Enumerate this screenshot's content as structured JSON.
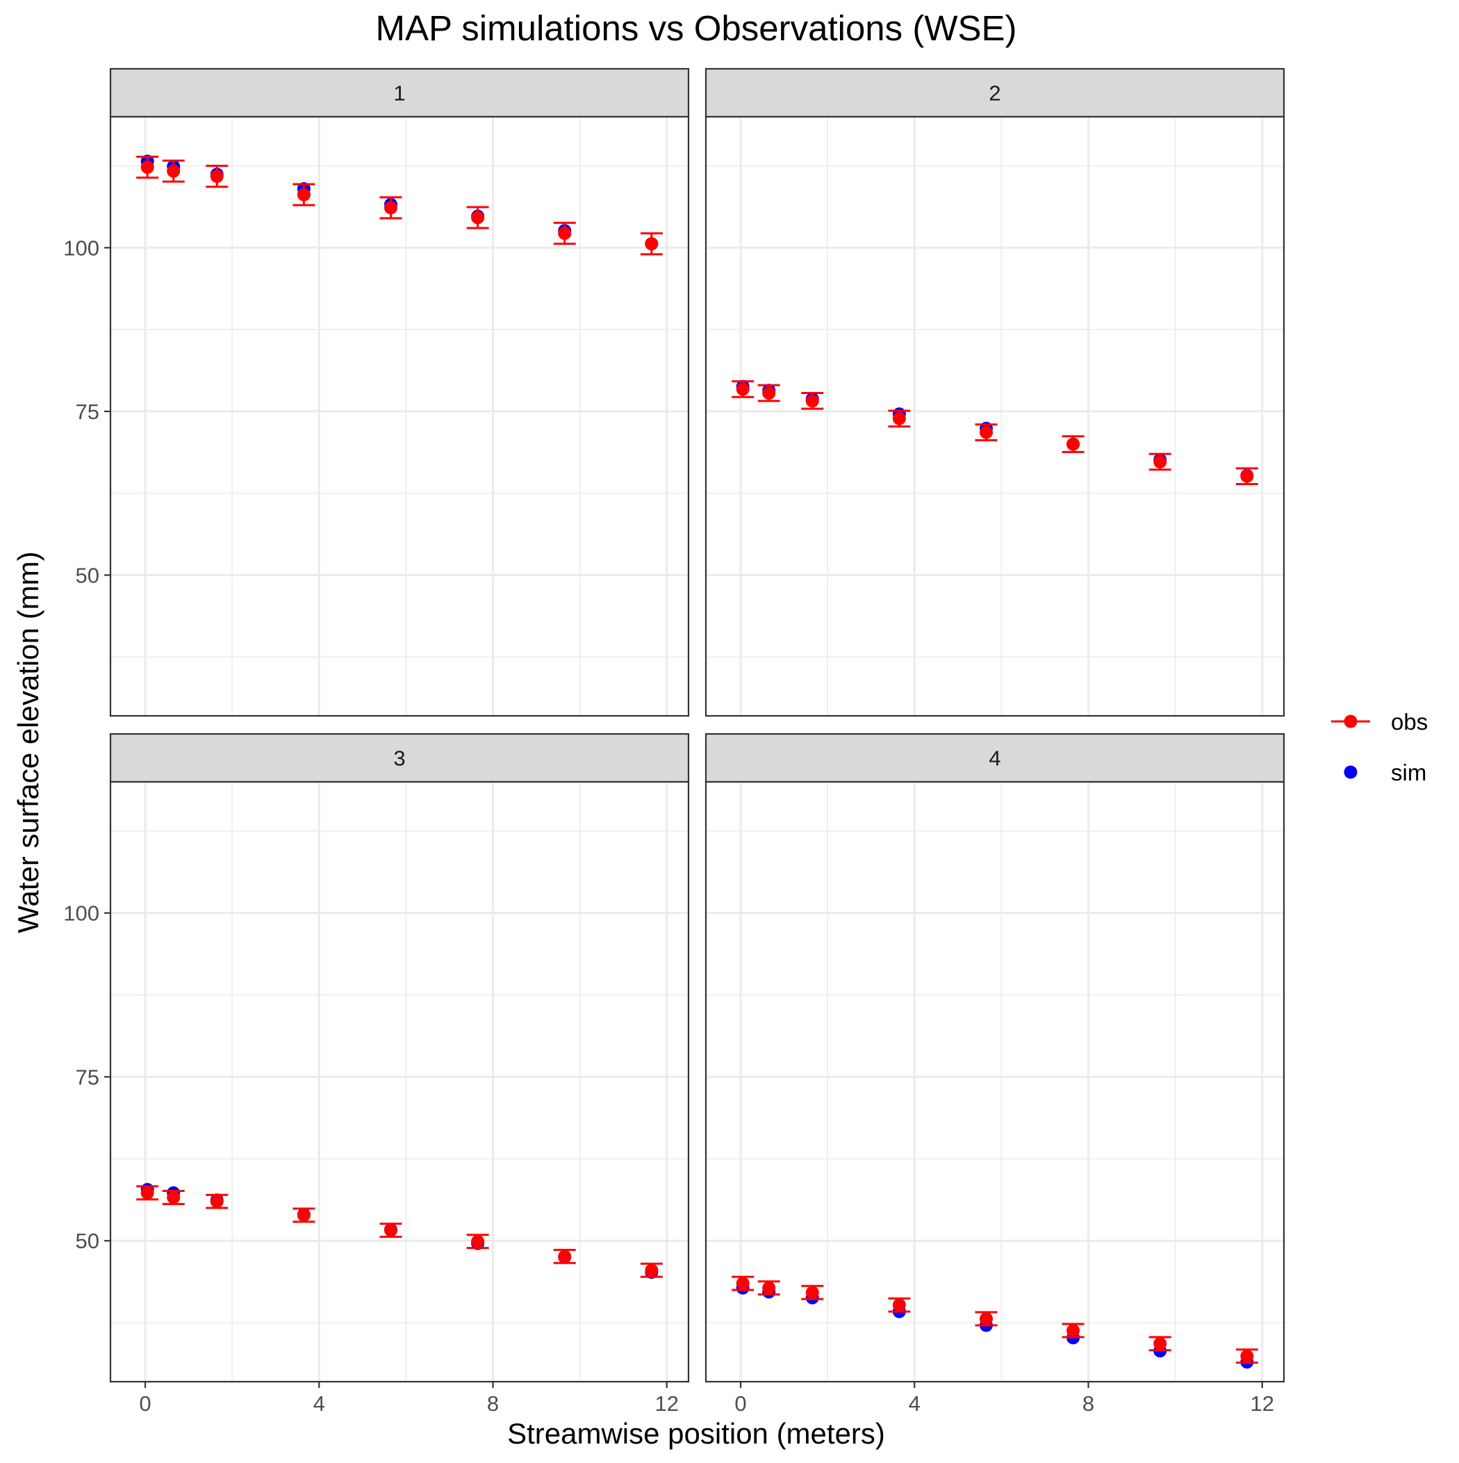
{
  "chart_data": {
    "type": "scatter",
    "title": "MAP simulations vs Observations (WSE)",
    "xlabel": "Streamwise position (meters)",
    "ylabel": "Water surface elevation (mm)",
    "xlim": [
      -0.8,
      12.5
    ],
    "ylim": [
      28.5,
      120
    ],
    "x_ticks": [
      0,
      4,
      8,
      12
    ],
    "x_tick_labels": [
      "0",
      "4",
      "8",
      "12"
    ],
    "y_ticks": [
      50,
      75,
      100
    ],
    "y_tick_labels": [
      "50",
      "75",
      "100"
    ],
    "grid": true,
    "legend_position": "right",
    "legend": [
      {
        "name": "obs",
        "color": "#ff0000",
        "style": "point-with-errorbar"
      },
      {
        "name": "sim",
        "color": "#0000ff",
        "style": "point"
      }
    ],
    "panels": [
      {
        "label": "1",
        "x": [
          0.05,
          0.65,
          1.65,
          3.65,
          5.65,
          7.65,
          9.65,
          11.65
        ],
        "sim": [
          113.2,
          112.4,
          111.2,
          109.0,
          106.6,
          104.8,
          102.6,
          100.6
        ],
        "obs": [
          112.3,
          111.7,
          110.9,
          108.1,
          106.1,
          104.6,
          102.2,
          100.6
        ],
        "obs_lower": [
          110.7,
          110.1,
          109.3,
          106.5,
          104.5,
          103.0,
          100.6,
          99.0
        ],
        "obs_upper": [
          113.9,
          113.3,
          112.5,
          109.7,
          107.7,
          106.2,
          103.8,
          102.2
        ]
      },
      {
        "label": "2",
        "x": [
          0.05,
          0.65,
          1.65,
          3.65,
          5.65,
          7.65,
          9.65,
          11.65
        ],
        "sim": [
          78.8,
          78.2,
          76.9,
          74.6,
          72.4,
          70.0,
          67.6,
          65.2
        ],
        "obs": [
          78.4,
          77.8,
          76.6,
          73.9,
          71.8,
          70.0,
          67.3,
          65.1
        ],
        "obs_lower": [
          77.2,
          76.6,
          75.4,
          72.7,
          70.6,
          68.8,
          66.1,
          63.9
        ],
        "obs_upper": [
          79.6,
          79.0,
          77.8,
          75.1,
          73.0,
          71.2,
          68.5,
          66.3
        ]
      },
      {
        "label": "3",
        "x": [
          0.05,
          0.65,
          1.65,
          3.65,
          5.65,
          7.65,
          9.65,
          11.65
        ],
        "sim": [
          57.8,
          57.3,
          56.2,
          54.0,
          51.7,
          49.6,
          47.5,
          45.2
        ],
        "obs": [
          57.3,
          56.6,
          56.0,
          53.9,
          51.6,
          49.9,
          47.6,
          45.5
        ],
        "obs_lower": [
          56.3,
          55.6,
          55.0,
          52.9,
          50.6,
          48.9,
          46.6,
          44.5
        ],
        "obs_upper": [
          58.3,
          57.6,
          57.0,
          54.9,
          52.6,
          50.9,
          48.6,
          46.5
        ]
      },
      {
        "label": "4",
        "x": [
          0.05,
          0.65,
          1.65,
          3.65,
          5.65,
          7.65,
          9.65,
          11.65
        ],
        "sim": [
          42.8,
          42.2,
          41.3,
          39.2,
          37.1,
          35.2,
          33.2,
          31.5
        ],
        "obs": [
          43.5,
          42.8,
          42.1,
          40.2,
          38.1,
          36.3,
          34.3,
          32.4
        ],
        "obs_lower": [
          42.5,
          41.8,
          41.1,
          39.2,
          37.1,
          35.3,
          33.3,
          31.4
        ],
        "obs_upper": [
          44.5,
          43.8,
          43.1,
          41.2,
          39.1,
          37.3,
          35.3,
          33.4
        ]
      }
    ]
  }
}
